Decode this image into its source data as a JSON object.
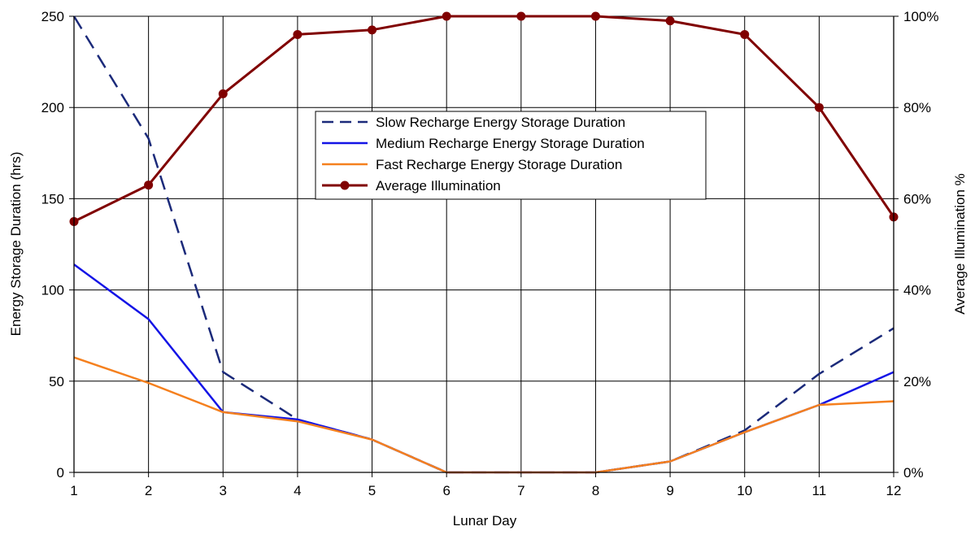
{
  "chart_data": {
    "type": "line",
    "xlabel": "Lunar Day",
    "ylabel": "Energy Storage Duration (hrs)",
    "y2label": "Average Illumination %",
    "x": [
      1,
      2,
      3,
      4,
      5,
      6,
      7,
      8,
      9,
      10,
      11,
      12
    ],
    "ylim": [
      0,
      250
    ],
    "y_ticks": [
      0,
      50,
      100,
      150,
      200,
      250
    ],
    "y2lim": [
      0,
      100
    ],
    "y2_ticks": [
      "0%",
      "20%",
      "40%",
      "60%",
      "80%",
      "100%"
    ],
    "grid": true,
    "legend_position": "top-center",
    "series": [
      {
        "name": "Slow Recharge Energy Storage Duration",
        "axis": "left",
        "style": "dashed",
        "color": "#1b2a7a",
        "values": [
          250,
          183,
          55,
          29,
          18,
          0,
          0,
          0,
          6,
          23,
          54,
          79
        ]
      },
      {
        "name": "Medium Recharge Energy Storage Duration",
        "axis": "left",
        "style": "solid",
        "color": "#1414e6",
        "values": [
          114,
          84,
          33,
          29,
          18,
          0,
          0,
          0,
          6,
          22,
          37,
          55
        ]
      },
      {
        "name": "Fast Recharge Energy Storage Duration",
        "axis": "left",
        "style": "solid",
        "color": "#f5801e",
        "values": [
          63,
          49,
          33,
          28,
          18,
          0,
          0,
          0,
          6,
          22,
          37,
          39
        ]
      },
      {
        "name": "Average Illumination",
        "axis": "right",
        "style": "markers",
        "color": "#800000",
        "values": [
          55,
          63,
          83,
          96,
          97,
          100,
          100,
          100,
          99,
          96,
          80,
          56
        ]
      }
    ]
  }
}
